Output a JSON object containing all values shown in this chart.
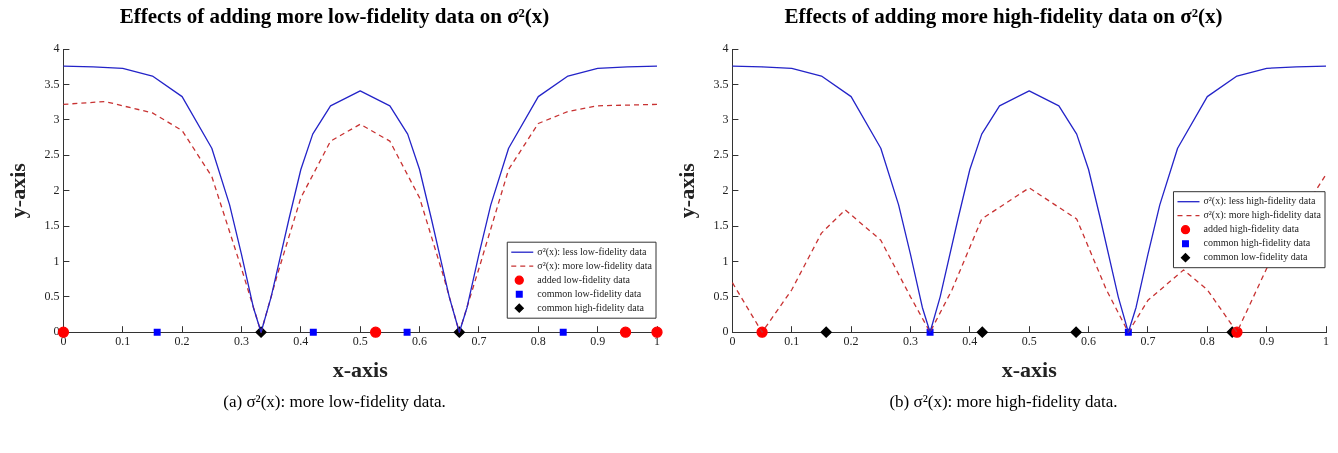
{
  "chart_data": [
    {
      "type": "line",
      "title": "Effects of adding more low-fidelity data on σ²(x)",
      "xlabel": "x-axis",
      "ylabel": "y-axis",
      "xlim": [
        0,
        1
      ],
      "xticks": [
        0,
        0.1,
        0.2,
        0.3,
        0.4,
        0.5,
        0.6,
        0.7,
        0.8,
        0.9,
        1
      ],
      "ylim": [
        0,
        4
      ],
      "yticks": [
        0,
        0.5,
        1,
        1.5,
        2,
        2.5,
        3,
        3.5,
        4
      ],
      "grid": false,
      "legend": "bottom right",
      "annotations": [
        "(a) σ²(x): more low-fidelity data."
      ],
      "series": [
        {
          "name": "σ²(x): less low-fidelity data",
          "type": "line",
          "color": "#2323c8",
          "line_style": "solid",
          "marker": "none",
          "x": [
            0,
            0.05,
            0.1,
            0.15,
            0.2,
            0.25,
            0.28,
            0.3,
            0.32,
            0.333,
            0.35,
            0.38,
            0.4,
            0.42,
            0.45,
            0.5,
            0.55,
            0.58,
            0.6,
            0.62,
            0.65,
            0.667,
            0.68,
            0.7,
            0.72,
            0.75,
            0.8,
            0.85,
            0.9,
            0.95,
            1
          ],
          "values": [
            3.76,
            3.75,
            3.73,
            3.62,
            3.33,
            2.6,
            1.8,
            1.1,
            0.35,
            0,
            0.5,
            1.6,
            2.3,
            2.8,
            3.2,
            3.41,
            3.2,
            2.8,
            2.3,
            1.6,
            0.5,
            0,
            0.35,
            1.1,
            1.8,
            2.6,
            3.33,
            3.62,
            3.73,
            3.75,
            3.76
          ]
        },
        {
          "name": "σ²(x): more low-fidelity data",
          "type": "line",
          "color": "#c83232",
          "line_style": "dashed",
          "marker": "none",
          "x": [
            0,
            0.07,
            0.15,
            0.2,
            0.25,
            0.3,
            0.333,
            0.36,
            0.4,
            0.45,
            0.5,
            0.55,
            0.6,
            0.64,
            0.667,
            0.7,
            0.75,
            0.8,
            0.85,
            0.9,
            1
          ],
          "values": [
            3.22,
            3.26,
            3.1,
            2.85,
            2.2,
            0.9,
            0,
            0.8,
            1.9,
            2.7,
            2.94,
            2.7,
            1.9,
            0.8,
            0,
            0.9,
            2.3,
            2.95,
            3.12,
            3.2,
            3.22
          ]
        },
        {
          "name": "added low-fidelity data",
          "type": "scatter",
          "color": "#ff0000",
          "marker": "circle",
          "x": [
            0,
            0.526,
            0.947,
            1
          ],
          "values": [
            0,
            0,
            0,
            0
          ]
        },
        {
          "name": "common low-fidelity data",
          "type": "scatter",
          "color": "#0000ff",
          "marker": "square",
          "x": [
            0.158,
            0.421,
            0.579,
            0.842
          ],
          "values": [
            0,
            0,
            0,
            0
          ]
        },
        {
          "name": "common high-fidelity data",
          "type": "scatter",
          "color": "#000000",
          "marker": "diamond",
          "x": [
            0.333,
            0.667
          ],
          "values": [
            0,
            0
          ]
        }
      ]
    },
    {
      "type": "line",
      "title": "Effects of adding more high-fidelity data on σ²(x)",
      "xlabel": "x-axis",
      "ylabel": "y-axis",
      "xlim": [
        0,
        1
      ],
      "xticks": [
        0,
        0.1,
        0.2,
        0.3,
        0.4,
        0.5,
        0.6,
        0.7,
        0.8,
        0.9,
        1
      ],
      "ylim": [
        0,
        4
      ],
      "yticks": [
        0,
        0.5,
        1,
        1.5,
        2,
        2.5,
        3,
        3.5,
        4
      ],
      "grid": false,
      "legend": "right",
      "annotations": [
        "(b) σ²(x): more high-fidelity data."
      ],
      "series": [
        {
          "name": "σ²(x): less high-fidelity data",
          "type": "line",
          "color": "#2323c8",
          "line_style": "solid",
          "marker": "none",
          "x": [
            0,
            0.05,
            0.1,
            0.15,
            0.2,
            0.25,
            0.28,
            0.3,
            0.32,
            0.333,
            0.35,
            0.38,
            0.4,
            0.42,
            0.45,
            0.5,
            0.55,
            0.58,
            0.6,
            0.62,
            0.65,
            0.667,
            0.68,
            0.7,
            0.72,
            0.75,
            0.8,
            0.85,
            0.9,
            0.95,
            1
          ],
          "values": [
            3.76,
            3.75,
            3.73,
            3.62,
            3.33,
            2.6,
            1.8,
            1.1,
            0.35,
            0,
            0.5,
            1.6,
            2.3,
            2.8,
            3.2,
            3.41,
            3.2,
            2.8,
            2.3,
            1.6,
            0.5,
            0,
            0.35,
            1.1,
            1.8,
            2.6,
            3.33,
            3.62,
            3.73,
            3.75,
            3.76
          ]
        },
        {
          "name": "σ²(x): more high-fidelity data",
          "type": "line",
          "color": "#c83232",
          "line_style": "dashed",
          "marker": "none",
          "x": [
            0,
            0.05,
            0.1,
            0.15,
            0.19,
            0.25,
            0.3,
            0.333,
            0.37,
            0.42,
            0.5,
            0.58,
            0.63,
            0.667,
            0.7,
            0.76,
            0.8,
            0.85,
            0.9,
            1
          ],
          "values": [
            0.7,
            0,
            0.6,
            1.4,
            1.73,
            1.3,
            0.5,
            0,
            0.6,
            1.6,
            2.04,
            1.6,
            0.6,
            0,
            0.45,
            0.88,
            0.6,
            0,
            0.9,
            2.23
          ]
        },
        {
          "name": "added high-fidelity data",
          "type": "scatter",
          "color": "#ff0000",
          "marker": "circle",
          "x": [
            0.05,
            0.85
          ],
          "values": [
            0,
            0
          ]
        },
        {
          "name": "common high-fidelity data",
          "type": "scatter",
          "color": "#0000ff",
          "marker": "square",
          "x": [
            0.333,
            0.667
          ],
          "values": [
            0,
            0
          ]
        },
        {
          "name": "common low-fidelity data",
          "type": "scatter",
          "color": "#000000",
          "marker": "diamond",
          "x": [
            0.158,
            0.421,
            0.579,
            0.842
          ],
          "values": [
            0,
            0,
            0,
            0
          ]
        }
      ]
    }
  ]
}
